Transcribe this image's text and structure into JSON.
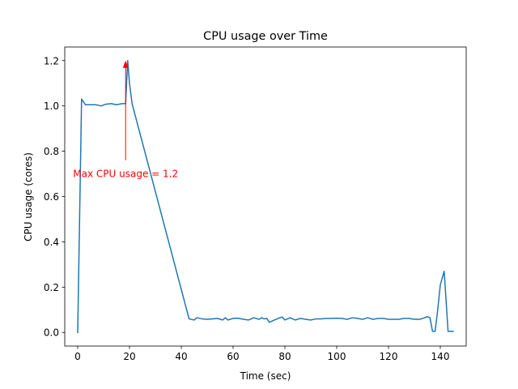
{
  "chart_data": {
    "type": "line",
    "title": "CPU usage over Time",
    "xlabel": "Time (sec)",
    "ylabel": "CPU usage (cores)",
    "xlim": [
      -5,
      150
    ],
    "ylim": [
      -0.06,
      1.26
    ],
    "xticks": [
      0,
      20,
      40,
      60,
      80,
      100,
      120,
      140
    ],
    "yticks": [
      0.0,
      0.2,
      0.4,
      0.6,
      0.8,
      1.0,
      1.2
    ],
    "xtick_labels": [
      "0",
      "20",
      "40",
      "60",
      "80",
      "100",
      "120",
      "140"
    ],
    "ytick_labels": [
      "0.0",
      "0.2",
      "0.4",
      "0.6",
      "0.8",
      "1.0",
      "1.2"
    ],
    "grid": false,
    "series": [
      {
        "color": "#1f77b4",
        "x": [
          0,
          1.5,
          3,
          5,
          7,
          9,
          11,
          13,
          15,
          17,
          18.5,
          19.3,
          20,
          21,
          43,
          45,
          46,
          48,
          50,
          52,
          54,
          56,
          57,
          58,
          60,
          62,
          64,
          66,
          68,
          70,
          71,
          72,
          73,
          74,
          76,
          78,
          79,
          80,
          81,
          82,
          84,
          86,
          88,
          90,
          92,
          94,
          96,
          98,
          100,
          102,
          104,
          106,
          108,
          110,
          112,
          114,
          116,
          118,
          120,
          122,
          124,
          126,
          128,
          130,
          132,
          134,
          135,
          136,
          137,
          138,
          139,
          140,
          141.5,
          143,
          145
        ],
        "y": [
          0.0,
          1.03,
          1.005,
          1.005,
          1.005,
          1.0,
          1.008,
          1.01,
          1.005,
          1.01,
          1.01,
          1.2,
          1.1,
          1.01,
          0.06,
          0.055,
          0.065,
          0.06,
          0.058,
          0.06,
          0.062,
          0.055,
          0.065,
          0.055,
          0.062,
          0.063,
          0.058,
          0.055,
          0.065,
          0.058,
          0.065,
          0.06,
          0.062,
          0.045,
          0.055,
          0.065,
          0.068,
          0.055,
          0.06,
          0.065,
          0.055,
          0.062,
          0.058,
          0.055,
          0.06,
          0.06,
          0.062,
          0.062,
          0.063,
          0.062,
          0.058,
          0.065,
          0.062,
          0.058,
          0.065,
          0.058,
          0.062,
          0.062,
          0.058,
          0.058,
          0.058,
          0.062,
          0.062,
          0.058,
          0.058,
          0.065,
          0.07,
          0.065,
          0.005,
          0.005,
          0.1,
          0.21,
          0.27,
          0.005,
          0.005
        ]
      }
    ],
    "annotations": [
      {
        "text": "Max CPU usage = 1.2",
        "text_x": 18.5,
        "text_y": 0.7,
        "arrow_x": 18.5,
        "arrow_y": 1.2,
        "color": "#ff0000"
      }
    ]
  }
}
